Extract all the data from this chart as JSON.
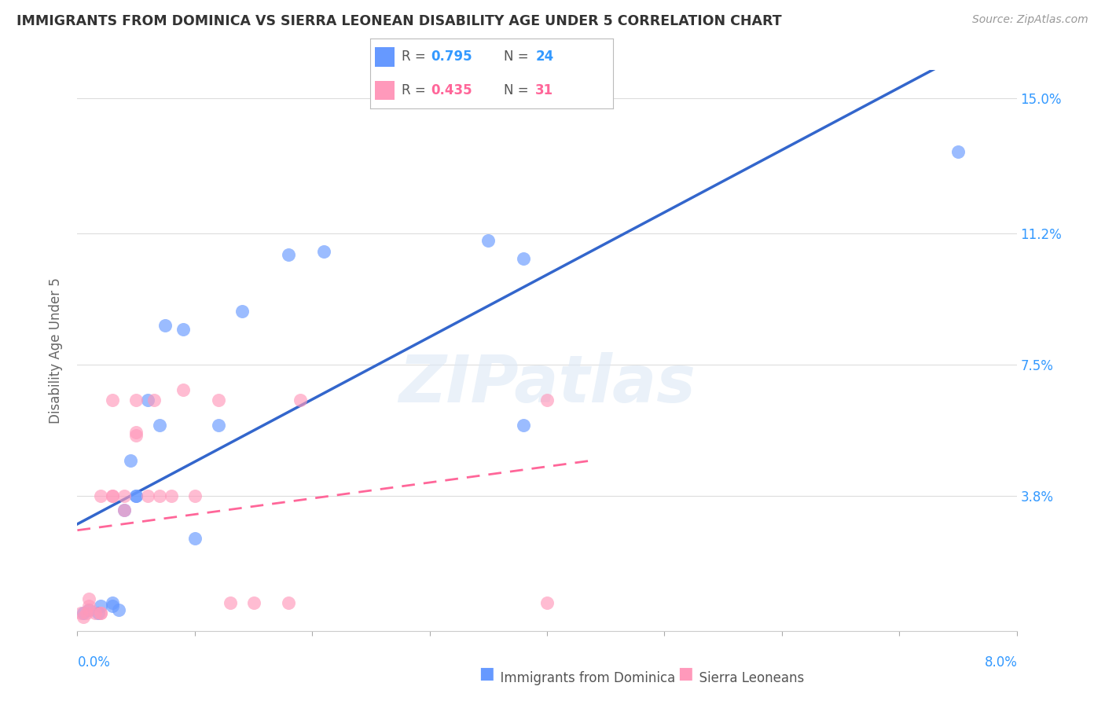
{
  "title": "IMMIGRANTS FROM DOMINICA VS SIERRA LEONEAN DISABILITY AGE UNDER 5 CORRELATION CHART",
  "source": "Source: ZipAtlas.com",
  "ylabel": "Disability Age Under 5",
  "right_yticks": [
    0.0,
    0.038,
    0.075,
    0.112,
    0.15
  ],
  "right_yticklabels": [
    "",
    "3.8%",
    "7.5%",
    "11.2%",
    "15.0%"
  ],
  "xmin": 0.0,
  "xmax": 0.08,
  "ymin": 0.0,
  "ymax": 0.158,
  "legend1_R": "0.795",
  "legend1_N": "24",
  "legend2_R": "0.435",
  "legend2_N": "31",
  "legend_label1": "Immigrants from Dominica",
  "legend_label2": "Sierra Leoneans",
  "blue_color": "#6699FF",
  "blue_line_color": "#3366CC",
  "pink_color": "#FF99BB",
  "pink_line_color": "#FF6699",
  "watermark": "ZIPatlas",
  "dominica_x": [
    0.0005,
    0.001,
    0.0018,
    0.002,
    0.003,
    0.003,
    0.0035,
    0.004,
    0.0045,
    0.005,
    0.005,
    0.006,
    0.007,
    0.0075,
    0.009,
    0.01,
    0.012,
    0.014,
    0.018,
    0.021,
    0.035,
    0.038,
    0.038,
    0.075
  ],
  "dominica_y": [
    0.005,
    0.006,
    0.005,
    0.007,
    0.007,
    0.008,
    0.006,
    0.034,
    0.048,
    0.038,
    0.038,
    0.065,
    0.058,
    0.086,
    0.085,
    0.026,
    0.058,
    0.09,
    0.106,
    0.107,
    0.11,
    0.105,
    0.058,
    0.135
  ],
  "sierra_x": [
    0.0003,
    0.0005,
    0.0008,
    0.001,
    0.001,
    0.001,
    0.0015,
    0.002,
    0.002,
    0.002,
    0.003,
    0.003,
    0.003,
    0.004,
    0.004,
    0.005,
    0.005,
    0.005,
    0.006,
    0.0065,
    0.007,
    0.008,
    0.009,
    0.01,
    0.012,
    0.013,
    0.015,
    0.018,
    0.019,
    0.04,
    0.04
  ],
  "sierra_y": [
    0.005,
    0.004,
    0.005,
    0.006,
    0.007,
    0.009,
    0.005,
    0.005,
    0.005,
    0.038,
    0.038,
    0.038,
    0.065,
    0.034,
    0.038,
    0.055,
    0.056,
    0.065,
    0.038,
    0.065,
    0.038,
    0.038,
    0.068,
    0.038,
    0.065,
    0.008,
    0.008,
    0.008,
    0.065,
    0.008,
    0.065
  ]
}
